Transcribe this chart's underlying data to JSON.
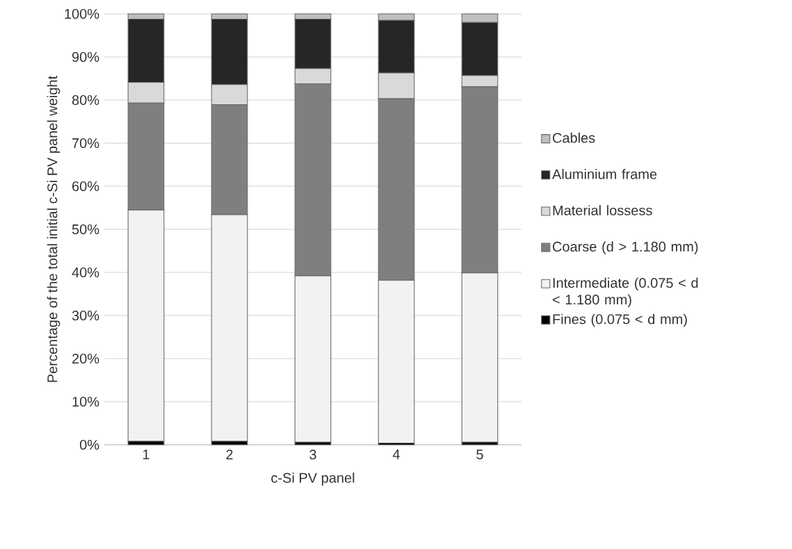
{
  "chart_data": {
    "type": "bar",
    "stacked": true,
    "xlabel": "c-Si PV panel",
    "ylabel": "Percentage of the total initial c-Si PV panel weight",
    "categories": [
      "1",
      "2",
      "3",
      "4",
      "5"
    ],
    "series": [
      {
        "name": "Fines (0.075 < d mm)",
        "color": "#000000",
        "values": [
          0.8,
          0.8,
          0.6,
          0.4,
          0.6
        ]
      },
      {
        "name": "Intermediate (0.075 < d < 1.180 mm)",
        "color": "#f2f2f2",
        "values": [
          53.7,
          52.6,
          38.6,
          37.8,
          39.3
        ]
      },
      {
        "name": "Coarse (d > 1.180 mm)",
        "color": "#7f7f7f",
        "values": [
          24.8,
          25.5,
          44.6,
          42.1,
          43.2
        ]
      },
      {
        "name": "Material lossess",
        "color": "#d9d9d9",
        "values": [
          4.8,
          4.7,
          3.5,
          6.0,
          2.6
        ]
      },
      {
        "name": "Aluminium frame",
        "color": "#262626",
        "values": [
          14.7,
          15.2,
          11.5,
          12.2,
          12.3
        ]
      },
      {
        "name": "Cables",
        "color": "#bfbfbf",
        "values": [
          1.2,
          1.2,
          1.2,
          1.5,
          2.0
        ]
      }
    ],
    "ylim": [
      0,
      100
    ],
    "yticks": [
      {
        "value": 0,
        "label": "0%"
      },
      {
        "value": 10,
        "label": "10%"
      },
      {
        "value": 20,
        "label": "20%"
      },
      {
        "value": 30,
        "label": "30%"
      },
      {
        "value": 40,
        "label": "40%"
      },
      {
        "value": 50,
        "label": "50%"
      },
      {
        "value": 60,
        "label": "60%"
      },
      {
        "value": 70,
        "label": "70%"
      },
      {
        "value": 80,
        "label": "80%"
      },
      {
        "value": 90,
        "label": "90%"
      },
      {
        "value": 100,
        "label": "100%"
      }
    ],
    "grid": "y",
    "legend": "right"
  }
}
